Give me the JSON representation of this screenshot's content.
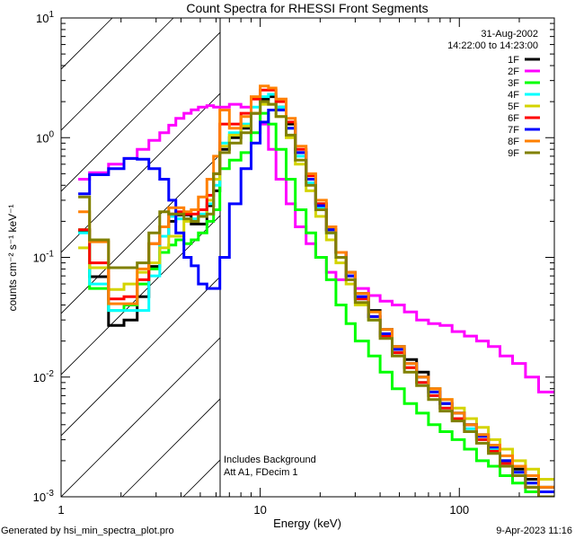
{
  "chart_data": {
    "type": "line",
    "title": "Count Spectra for RHESSI Front Segments",
    "xlabel": "Energy (keV)",
    "ylabel": "counts cm⁻² s⁻¹ keV⁻¹",
    "xscale": "log",
    "yscale": "log",
    "xlim": [
      1,
      300
    ],
    "ylim": [
      0.001,
      10
    ],
    "x_tick_labels": [
      "1",
      "10",
      "100"
    ],
    "x_tick_values": [
      1,
      10,
      100
    ],
    "y_tick_values": [
      10,
      1,
      0.1,
      0.01,
      0.001
    ],
    "y_tick_labels": [
      {
        "base": "10",
        "exp": "1"
      },
      {
        "base": "10",
        "exp": "0"
      },
      {
        "base": "10",
        "exp": "-1"
      },
      {
        "base": "10",
        "exp": "-2"
      },
      {
        "base": "10",
        "exp": "-3"
      }
    ],
    "date": "31-Aug-2002",
    "time_range": "14:22:00 to 14:23:00",
    "hatched_region_keV": [
      1,
      6.27
    ],
    "annotations": [
      "Includes Background",
      "Att A1, FDecim 1"
    ],
    "legend_placement": "top-right",
    "bin_edges_keV": [
      1.22,
      1.39,
      1.73,
      2.07,
      2.41,
      2.76,
      3.13,
      3.47,
      3.77,
      4.14,
      4.5,
      4.89,
      5.4,
      5.83,
      6.27,
      7,
      8,
      9,
      10,
      11,
      12,
      13.5,
      15,
      17,
      19,
      21.5,
      24,
      27,
      30,
      35,
      40,
      46,
      53,
      61,
      70,
      80,
      92,
      106,
      122,
      140,
      160,
      185,
      215,
      250,
      300
    ],
    "series": [
      {
        "name": "1F",
        "color": "#000000",
        "values": [
          0.166,
          0.069,
          0.027,
          0.03,
          0.047,
          0.084,
          0.15,
          0.2,
          0.226,
          0.226,
          0.19,
          0.19,
          0.27,
          0.36,
          0.8,
          1.0,
          1.2,
          1.6,
          2.1,
          2.2,
          1.8,
          1.3,
          0.75,
          0.45,
          0.28,
          0.17,
          0.11,
          0.075,
          0.05,
          0.036,
          0.025,
          0.018,
          0.014,
          0.011,
          0.008,
          0.006,
          0.005,
          0.004,
          0.0033,
          0.0025,
          0.002,
          0.0017,
          0.0014,
          0.0012
        ]
      },
      {
        "name": "2F",
        "color": "#ff00ff",
        "values": [
          0.45,
          0.51,
          0.6,
          0.67,
          0.8,
          0.95,
          1.1,
          1.27,
          1.45,
          1.6,
          1.71,
          1.8,
          1.85,
          1.8,
          1.8,
          1.9,
          1.8,
          1.6,
          1.3,
          0.8,
          0.45,
          0.28,
          0.18,
          0.13,
          0.1,
          0.075,
          0.065,
          0.065,
          0.055,
          0.048,
          0.043,
          0.04,
          0.035,
          0.03,
          0.028,
          0.027,
          0.024,
          0.022,
          0.02,
          0.018,
          0.015,
          0.013,
          0.01,
          0.0075
        ]
      },
      {
        "name": "3F",
        "color": "#00ff00",
        "values": [
          0.17,
          0.055,
          0.036,
          0.04,
          0.06,
          0.08,
          0.11,
          0.127,
          0.14,
          0.13,
          0.14,
          0.16,
          0.2,
          0.25,
          0.55,
          0.65,
          0.75,
          1.1,
          1.6,
          1.3,
          0.8,
          0.45,
          0.25,
          0.16,
          0.1,
          0.065,
          0.04,
          0.028,
          0.02,
          0.015,
          0.011,
          0.008,
          0.006,
          0.005,
          0.004,
          0.0035,
          0.003,
          0.0025,
          0.002,
          0.0018,
          0.0015,
          0.0013,
          0.0011,
          0.001
        ]
      },
      {
        "name": "4F",
        "color": "#00ffff",
        "values": [
          0.16,
          0.06,
          0.036,
          0.036,
          0.036,
          0.07,
          0.15,
          0.22,
          0.21,
          0.21,
          0.21,
          0.23,
          0.28,
          0.4,
          0.9,
          1.1,
          1.3,
          1.8,
          2.2,
          2.3,
          1.8,
          1.2,
          0.7,
          0.42,
          0.26,
          0.16,
          0.1,
          0.07,
          0.045,
          0.03,
          0.022,
          0.016,
          0.012,
          0.009,
          0.007,
          0.0055,
          0.0045,
          0.0037,
          0.003,
          0.0025,
          0.002,
          0.0016,
          0.0013,
          0.0011
        ]
      },
      {
        "name": "5F",
        "color": "#d4d400",
        "values": [
          0.12,
          0.082,
          0.054,
          0.06,
          0.075,
          0.09,
          0.12,
          0.15,
          0.15,
          0.2,
          0.2,
          0.22,
          0.3,
          0.45,
          0.85,
          1.05,
          1.25,
          1.6,
          1.9,
          1.9,
          1.5,
          1.0,
          0.6,
          0.36,
          0.22,
          0.14,
          0.09,
          0.06,
          0.04,
          0.03,
          0.022,
          0.016,
          0.012,
          0.01,
          0.008,
          0.0065,
          0.0055,
          0.0045,
          0.0038,
          0.003,
          0.0025,
          0.002,
          0.0017,
          0.0014
        ]
      },
      {
        "name": "6F",
        "color": "#ff0000",
        "values": [
          0.17,
          0.09,
          0.045,
          0.047,
          0.065,
          0.13,
          0.18,
          0.23,
          0.24,
          0.23,
          0.23,
          0.25,
          0.33,
          0.5,
          1.3,
          1.3,
          1.6,
          2.1,
          2.5,
          2.5,
          2.0,
          1.35,
          0.8,
          0.48,
          0.28,
          0.17,
          0.11,
          0.07,
          0.045,
          0.032,
          0.022,
          0.016,
          0.012,
          0.009,
          0.007,
          0.0055,
          0.0045,
          0.0035,
          0.003,
          0.0024,
          0.0019,
          0.0015,
          0.0012,
          0.001
        ]
      },
      {
        "name": "7F",
        "color": "#0000ff",
        "values": [
          0.34,
          0.49,
          0.55,
          0.67,
          0.66,
          0.55,
          0.45,
          0.3,
          0.16,
          0.1,
          0.085,
          0.06,
          0.055,
          0.055,
          0.1,
          0.28,
          0.55,
          0.9,
          1.35,
          1.7,
          1.7,
          1.2,
          0.75,
          0.45,
          0.27,
          0.17,
          0.11,
          0.07,
          0.047,
          0.032,
          0.023,
          0.017,
          0.013,
          0.01,
          0.0075,
          0.006,
          0.005,
          0.004,
          0.0032,
          0.0026,
          0.002,
          0.0016,
          0.0013,
          0.0011
        ]
      },
      {
        "name": "8F",
        "color": "#ff8000",
        "values": [
          0.24,
          0.135,
          0.041,
          0.041,
          0.08,
          0.13,
          0.18,
          0.26,
          0.26,
          0.24,
          0.25,
          0.32,
          0.45,
          0.7,
          1.7,
          1.2,
          1.5,
          2.2,
          2.7,
          2.6,
          2.1,
          1.45,
          0.85,
          0.5,
          0.3,
          0.18,
          0.11,
          0.075,
          0.05,
          0.035,
          0.025,
          0.018,
          0.013,
          0.01,
          0.008,
          0.0065,
          0.005,
          0.004,
          0.0033,
          0.0027,
          0.0022,
          0.0018,
          0.0015,
          0.0012
        ]
      },
      {
        "name": "9F",
        "color": "#808000",
        "values": [
          0.32,
          0.14,
          0.082,
          0.082,
          0.09,
          0.16,
          0.24,
          0.23,
          0.23,
          0.21,
          0.2,
          0.22,
          0.23,
          0.5,
          0.75,
          0.9,
          1.1,
          1.6,
          2.0,
          1.9,
          1.5,
          1.05,
          0.65,
          0.4,
          0.25,
          0.16,
          0.1,
          0.065,
          0.042,
          0.03,
          0.021,
          0.015,
          0.011,
          0.0085,
          0.0065,
          0.0052,
          0.0043,
          0.0035,
          0.0028,
          0.0023,
          0.0018,
          0.0015,
          0.0012,
          0.001
        ]
      }
    ]
  },
  "footer": {
    "generated_by": "Generated by hsi_min_spectra_plot.pro",
    "timestamp": "9-Apr-2023 11:16"
  }
}
